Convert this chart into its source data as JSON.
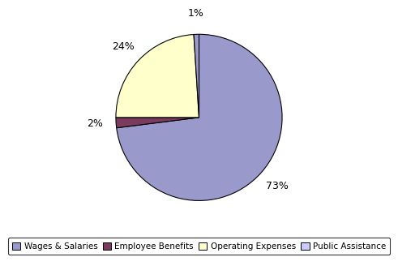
{
  "labels": [
    "Wages & Salaries",
    "Employee Benefits",
    "Operating Expenses",
    "Public Assistance"
  ],
  "values": [
    73,
    2,
    24,
    1
  ],
  "colors": [
    "#9999CC",
    "#7B3B5E",
    "#FFFFCC",
    "#9999CC"
  ],
  "background_color": "#ffffff",
  "edge_color": "#000000",
  "legend_colors": [
    "#9999CC",
    "#7B3B5E",
    "#FFFFCC",
    "#CCCCFF"
  ],
  "legend_labels": [
    "Wages & Salaries",
    "Employee Benefits",
    "Operating Expenses",
    "Public Assistance"
  ],
  "startangle": 90,
  "figsize": [
    4.91,
    3.33
  ],
  "dpi": 100
}
